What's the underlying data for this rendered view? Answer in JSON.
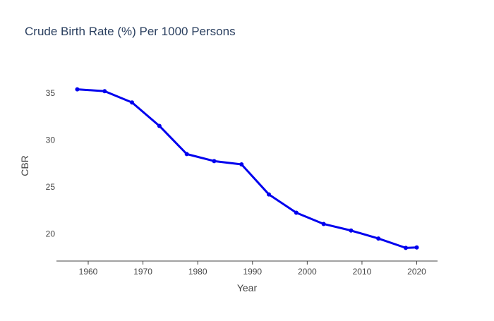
{
  "chart_data": {
    "type": "line",
    "title": "Crude Birth Rate (%) Per 1000 Persons",
    "xlabel": "Year",
    "ylabel": "CBR",
    "x": [
      1958,
      1963,
      1968,
      1973,
      1978,
      1983,
      1988,
      1993,
      1998,
      2003,
      2008,
      2013,
      2018,
      2020
    ],
    "series": [
      {
        "values": [
          35.4,
          35.2,
          34.0,
          31.5,
          28.5,
          27.75,
          27.4,
          24.2,
          22.25,
          21.05,
          20.35,
          19.5,
          18.5,
          18.55
        ]
      }
    ],
    "xlim": [
      1954.2,
      2023.8
    ],
    "ylim": [
      17.1,
      37.4
    ],
    "x_ticks": [
      "1960",
      "1970",
      "1980",
      "1990",
      "2000",
      "2010",
      "2020"
    ],
    "y_ticks": [
      "20",
      "25",
      "30",
      "35"
    ],
    "grid": false,
    "line_color": "#0000ee",
    "axis_color": "#444444",
    "text_color": "#444444",
    "title_color": "#2a3f5f"
  }
}
